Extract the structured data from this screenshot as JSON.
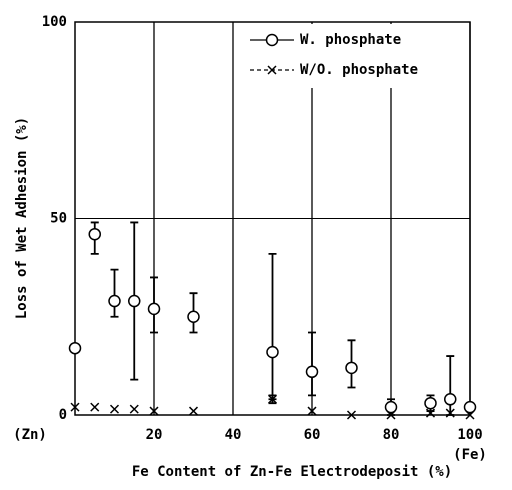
{
  "chart_data": {
    "type": "scatter",
    "xlabel": "Fe Content of Zn-Fe Electrodeposit (%)",
    "ylabel": "Loss of Wet Adhesion  (%)",
    "annotations": [
      "(Zn)",
      "(Fe)"
    ],
    "xlim": [
      0,
      100
    ],
    "ylim": [
      0,
      100
    ],
    "xticks": [
      20,
      40,
      60,
      80,
      100
    ],
    "yticks": [
      0,
      50,
      100
    ],
    "grid": true,
    "legend": "upper right",
    "series": [
      {
        "name": "W. phosphate",
        "color": "#000000",
        "marker": "circle",
        "line": "solid",
        "x": [
          0,
          5,
          10,
          15,
          20,
          30,
          50,
          60,
          70,
          80,
          90,
          95,
          100
        ],
        "values": [
          17,
          46,
          29,
          29,
          27,
          25,
          16,
          11,
          12,
          2,
          3,
          4,
          2
        ],
        "error_low": [
          null,
          5,
          4,
          20,
          6,
          4,
          12,
          6,
          5,
          2,
          2,
          4,
          null
        ],
        "error_high": [
          null,
          3,
          8,
          20,
          8,
          6,
          25,
          10,
          7,
          2,
          2,
          11,
          null
        ]
      },
      {
        "name": "W/O. phosphate",
        "color": "#000000",
        "marker": "x",
        "line": "dashed",
        "x": [
          0,
          5,
          10,
          15,
          20,
          30,
          50,
          60,
          70,
          80,
          90,
          95,
          100
        ],
        "values": [
          2,
          2,
          1.5,
          1.5,
          1,
          1,
          4,
          1,
          0,
          0,
          0.5,
          0.5,
          0
        ],
        "error_low": [
          null,
          null,
          null,
          null,
          null,
          null,
          1,
          null,
          null,
          null,
          null,
          null,
          null
        ],
        "error_high": [
          null,
          null,
          null,
          null,
          null,
          null,
          1,
          null,
          null,
          null,
          null,
          null,
          null
        ]
      }
    ]
  }
}
